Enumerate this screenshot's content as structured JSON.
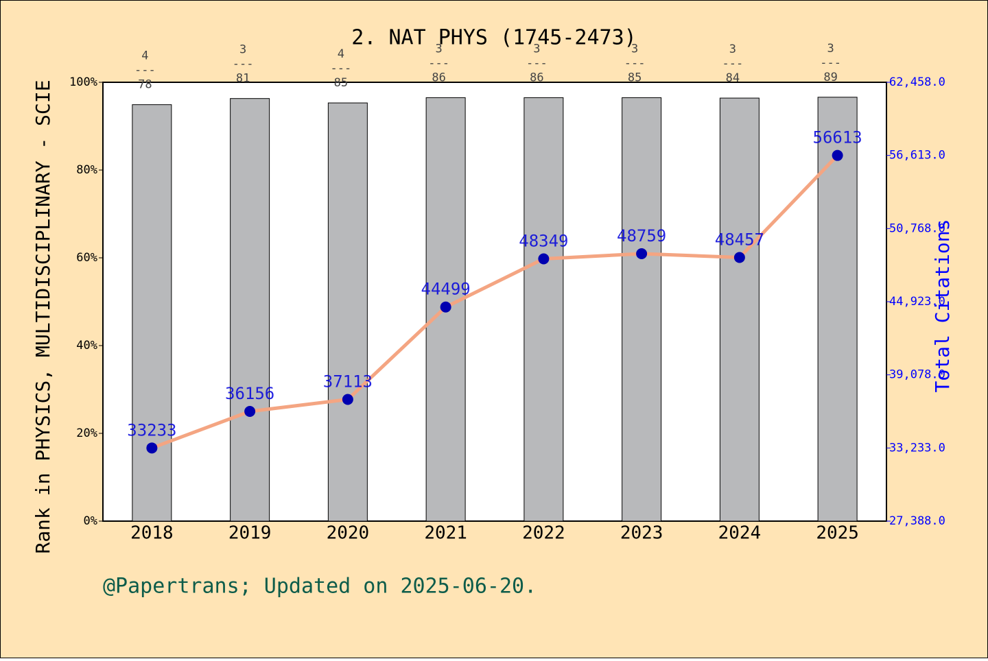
{
  "chart_data": {
    "type": "bar",
    "title": "2. NAT PHYS (1745-2473)",
    "y_label": "Rank in PHYSICS, MULTIDISCIPLINARY - SCIE",
    "y2_label": "Total Citations",
    "annotation": "@Papertrans; Updated on 2025-06-20.",
    "categories": [
      "2018",
      "2019",
      "2020",
      "2021",
      "2022",
      "2023",
      "2024",
      "2025"
    ],
    "rank_separator": "---",
    "series": [
      {
        "type": "bar",
        "color": "#b8b9bb",
        "values": [
          94.9,
          96.3,
          95.3,
          96.5,
          96.5,
          96.5,
          96.4,
          96.6
        ],
        "ranks": [
          4,
          3,
          4,
          3,
          3,
          3,
          3,
          3
        ],
        "journal_counts": [
          78,
          81,
          85,
          86,
          86,
          85,
          84,
          89
        ]
      },
      {
        "type": "line",
        "axis": "y2",
        "color": "#f4a582",
        "marker_color": "#0000b0",
        "label_color": "#0000dd",
        "values": [
          33233,
          36156,
          37113,
          44499,
          48349,
          48759,
          48457,
          56613
        ]
      }
    ],
    "ylim": [
      0,
      100
    ],
    "yticks": [
      {
        "value": 0,
        "label": "0%"
      },
      {
        "value": 20,
        "label": "20%"
      },
      {
        "value": 40,
        "label": "40%"
      },
      {
        "value": 60,
        "label": "60%"
      },
      {
        "value": 80,
        "label": "80%"
      },
      {
        "value": 100,
        "label": "100%"
      }
    ],
    "y2lim": [
      27388,
      62458
    ],
    "y2ticks": [
      {
        "value": 27388,
        "label": "27,388.0"
      },
      {
        "value": 33233,
        "label": "33,233.0"
      },
      {
        "value": 39078,
        "label": "39,078.0"
      },
      {
        "value": 44923,
        "label": "44,923.0"
      },
      {
        "value": 50768,
        "label": "50,768.0"
      },
      {
        "value": 56613,
        "label": "56,613.0"
      },
      {
        "value": 62458,
        "label": "62,458.0"
      }
    ]
  }
}
